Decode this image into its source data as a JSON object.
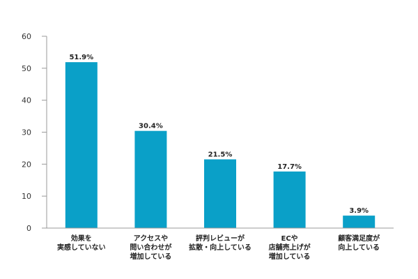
{
  "chart_data": {
    "type": "bar",
    "categories": [
      [
        "効果を",
        "実感していない"
      ],
      [
        "アクセスや",
        "問い合わせが",
        "増加している"
      ],
      [
        "評判レビューが",
        "拡散・向上している"
      ],
      [
        "ECや",
        "店舗売上げが",
        "増加している"
      ],
      [
        "顧客満足度が",
        "向上している"
      ]
    ],
    "values": [
      51.9,
      30.4,
      21.5,
      17.7,
      3.9
    ],
    "data_labels": [
      "51.9%",
      "30.4%",
      "21.5%",
      "17.7%",
      "3.9%"
    ],
    "yticks": [
      0,
      10,
      20,
      30,
      40,
      50,
      60
    ],
    "ylim": [
      0,
      60
    ],
    "bar_color": "#0aa0c8",
    "grid": false,
    "legend": "none"
  }
}
